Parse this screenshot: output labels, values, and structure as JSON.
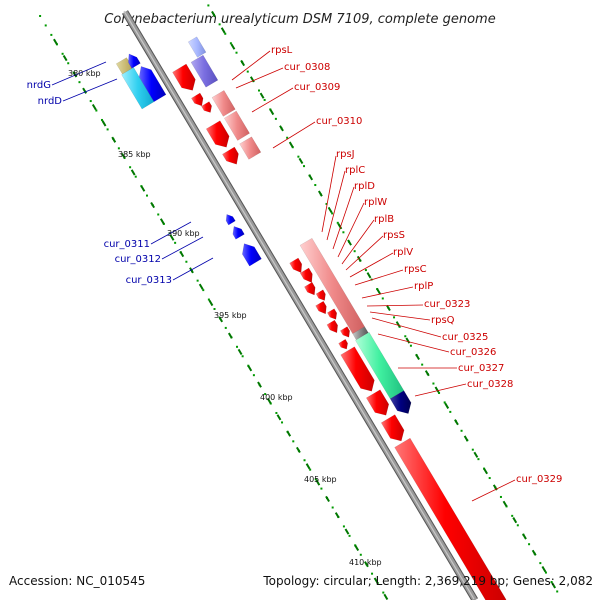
{
  "title": "Corynebacterium urealyticum DSM 7109, complete genome",
  "footer": {
    "accession": "Accession: NC_010545",
    "stats": "Topology: circular; Length: 2,369,219 bp; Genes: 2,082"
  },
  "colors": {
    "backbone": "#888888",
    "label_plus": "#cc0000",
    "label_minus": "#0000aa",
    "tick": "#007700"
  },
  "ticks": [
    "380 kbp",
    "385 kbp",
    "390 kbp",
    "395 kbp",
    "400 kbp",
    "405 kbp",
    "410 kbp"
  ],
  "labels_plus": [
    "rpsL",
    "cur_0308",
    "cur_0309",
    "cur_0310",
    "rpsJ",
    "rplC",
    "rplD",
    "rplW",
    "rplB",
    "rpsS",
    "rplV",
    "rpsC",
    "rplP",
    "cur_0323",
    "rpsQ",
    "cur_0325",
    "cur_0326",
    "cur_0327",
    "cur_0328",
    "cur_0329"
  ],
  "labels_minus": [
    "nrdG",
    "nrdD",
    "cur_0311",
    "cur_0312",
    "cur_0313"
  ]
}
